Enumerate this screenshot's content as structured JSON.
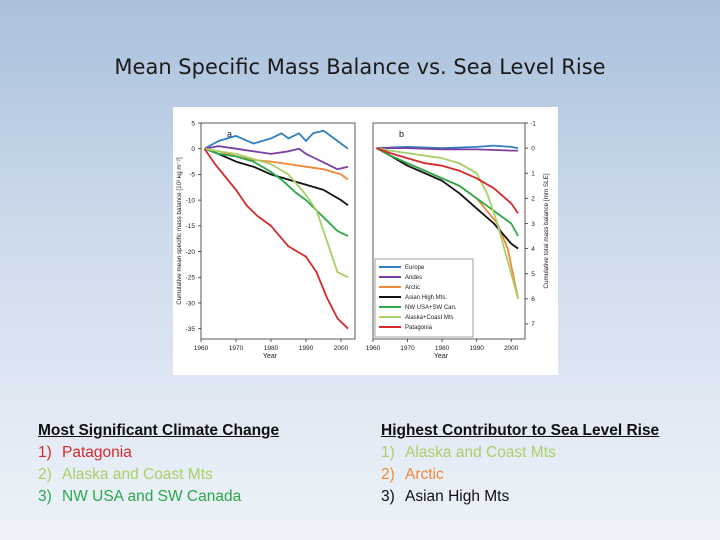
{
  "slide": {
    "title": "Mean Specific Mass Balance vs. Sea Level Rise"
  },
  "chart_data": [
    {
      "type": "line",
      "panel_label": "a",
      "ylabel": "Cumulative mean specific mass balance [10³ kg m⁻²]",
      "xlabel": "Year",
      "xlim": [
        1960,
        2004
      ],
      "ylim": [
        -37,
        5
      ],
      "x_ticks": [
        "1960",
        "1970",
        "1980",
        "1990",
        "2000"
      ],
      "y_ticks": [
        "5",
        "0",
        "-5",
        "-10",
        "-15",
        "-20",
        "-25",
        "-30",
        "-35"
      ],
      "series": [
        {
          "name": "Europe",
          "color": "#2f7fc1",
          "x": [
            1961,
            1965,
            1970,
            1975,
            1980,
            1983,
            1985,
            1988,
            1990,
            1992,
            1995,
            1998,
            2000,
            2002
          ],
          "y": [
            0,
            1.5,
            2.5,
            1,
            2,
            3,
            2,
            3,
            1.5,
            3,
            3.5,
            2,
            1,
            0
          ]
        },
        {
          "name": "Andes",
          "color": "#7b3fa0",
          "x": [
            1961,
            1965,
            1970,
            1975,
            1980,
            1985,
            1988,
            1990,
            1993,
            1996,
            1999,
            2002
          ],
          "y": [
            0,
            0.5,
            0,
            -0.5,
            -1,
            -0.5,
            0,
            -1,
            -2,
            -3,
            -4,
            -3.5
          ]
        },
        {
          "name": "Arctic",
          "color": "#f0883a",
          "x": [
            1961,
            1965,
            1970,
            1975,
            1980,
            1985,
            1990,
            1995,
            2000,
            2002
          ],
          "y": [
            0,
            -0.5,
            -1.5,
            -2.2,
            -2.5,
            -3,
            -3.5,
            -4,
            -5,
            -6
          ]
        },
        {
          "name": "Asian High Mts.",
          "color": "#111111",
          "x": [
            1961,
            1965,
            1970,
            1975,
            1980,
            1985,
            1990,
            1995,
            2000,
            2002
          ],
          "y": [
            0,
            -1,
            -2.5,
            -3.5,
            -5,
            -6,
            -7,
            -8,
            -10,
            -11
          ]
        },
        {
          "name": "NW USA+SW Can.",
          "color": "#2aa84a",
          "x": [
            1961,
            1965,
            1970,
            1975,
            1980,
            1983,
            1987,
            1990,
            1993,
            1996,
            1999,
            2002
          ],
          "y": [
            0,
            -1,
            -1.5,
            -2.5,
            -4.5,
            -6,
            -8.5,
            -10,
            -12,
            -14,
            -16,
            -17
          ]
        },
        {
          "name": "Alaska+Coast Mts",
          "color": "#a8d068",
          "x": [
            1961,
            1965,
            1970,
            1975,
            1980,
            1985,
            1990,
            1993,
            1996,
            1999,
            2002
          ],
          "y": [
            0,
            -0.5,
            -1,
            -2,
            -3,
            -5,
            -9,
            -12,
            -18,
            -24,
            -25
          ]
        },
        {
          "name": "Patagonia",
          "color": "#d42a2a",
          "x": [
            1961,
            1964,
            1967,
            1970,
            1973,
            1976,
            1980,
            1985,
            1990,
            1993,
            1996,
            1999,
            2002
          ],
          "y": [
            0,
            -3,
            -5.5,
            -8,
            -11,
            -13,
            -15,
            -19,
            -21,
            -24,
            -29,
            -33,
            -35
          ]
        }
      ]
    },
    {
      "type": "line",
      "panel_label": "b",
      "ylabel": "Cumulative total mass balance [mm SLE]",
      "xlabel": "Year",
      "xlim": [
        1960,
        2004
      ],
      "ylim": [
        -1,
        7.6
      ],
      "x_ticks": [
        "1960",
        "1970",
        "1980",
        "1990",
        "2000"
      ],
      "y_ticks": [
        "-1",
        "0",
        "1",
        "2",
        "3",
        "4",
        "5",
        "6",
        "7"
      ],
      "legend_position": "bottom-left",
      "series": [
        {
          "name": "Europe",
          "color": "#2f7fc1",
          "x": [
            1961,
            1970,
            1980,
            1990,
            1995,
            2000,
            2002
          ],
          "y": [
            0,
            -0.05,
            0,
            -0.05,
            -0.1,
            -0.05,
            0
          ]
        },
        {
          "name": "Andes",
          "color": "#7b3fa0",
          "x": [
            1961,
            1970,
            1980,
            1990,
            2000,
            2002
          ],
          "y": [
            0,
            0,
            0.05,
            0.05,
            0.1,
            0.1
          ]
        },
        {
          "name": "Arctic",
          "color": "#f0883a",
          "x": [
            1961,
            1965,
            1970,
            1975,
            1980,
            1985,
            1990,
            1993,
            1996,
            1999,
            2002
          ],
          "y": [
            0,
            0.3,
            0.6,
            0.9,
            1.2,
            1.5,
            2,
            2.5,
            3,
            4,
            6
          ]
        },
        {
          "name": "Asian High Mts.",
          "color": "#111111",
          "x": [
            1961,
            1965,
            1970,
            1975,
            1980,
            1985,
            1990,
            1995,
            2000,
            2002
          ],
          "y": [
            0,
            0.3,
            0.7,
            1,
            1.3,
            1.8,
            2.4,
            3,
            3.8,
            4
          ]
        },
        {
          "name": "NW USA+SW Can.",
          "color": "#2aa84a",
          "x": [
            1961,
            1965,
            1970,
            1975,
            1980,
            1985,
            1990,
            1995,
            2000,
            2002
          ],
          "y": [
            0,
            0.3,
            0.6,
            0.9,
            1.2,
            1.5,
            2,
            2.5,
            3,
            3.5
          ]
        },
        {
          "name": "Alaska+Coast Mts",
          "color": "#a8d068",
          "x": [
            1961,
            1965,
            1970,
            1975,
            1980,
            1985,
            1990,
            1993,
            1996,
            1999,
            2002
          ],
          "y": [
            0,
            0.1,
            0.2,
            0.3,
            0.4,
            0.6,
            1,
            1.8,
            3,
            4.5,
            6
          ]
        },
        {
          "name": "Patagonia",
          "color": "#d42a2a",
          "x": [
            1961,
            1965,
            1970,
            1975,
            1980,
            1985,
            1990,
            1995,
            2000,
            2002
          ],
          "y": [
            0,
            0.2,
            0.4,
            0.6,
            0.7,
            0.9,
            1.2,
            1.6,
            2.2,
            2.6
          ]
        }
      ]
    }
  ],
  "left_list": {
    "header": "Most Significant Climate Change",
    "items": [
      {
        "num": "1)",
        "text": "Patagonia",
        "color": "#d42a2a"
      },
      {
        "num": "2)",
        "text": "Alaska and Coast Mts",
        "color": "#a8d068"
      },
      {
        "num": "3)",
        "text": "NW USA and SW Canada",
        "color": "#2aa84a"
      }
    ]
  },
  "right_list": {
    "header": "Highest Contributor to Sea Level Rise",
    "items": [
      {
        "num": "1)",
        "text": "Alaska and Coast Mts",
        "color": "#a8d068"
      },
      {
        "num": "2)",
        "text": "Arctic",
        "color": "#f0883a"
      },
      {
        "num": "3)",
        "text": "Asian High Mts",
        "color": "#111111"
      }
    ]
  }
}
